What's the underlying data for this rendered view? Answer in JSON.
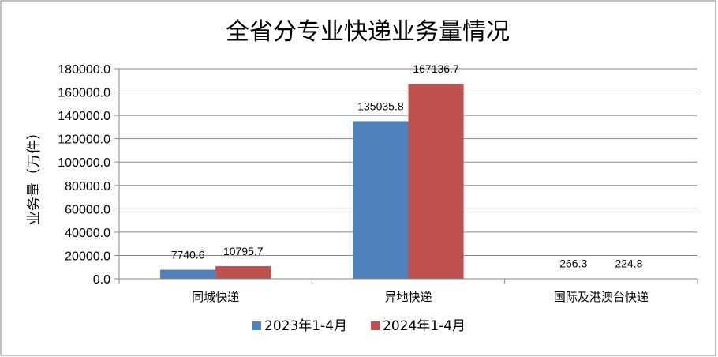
{
  "chart_data": {
    "type": "bar",
    "title": "全省分专业快递业务量情况",
    "xlabel": "",
    "ylabel": "业务量（万件）",
    "categories": [
      "同城快递",
      "异地快递",
      "国际及港澳台快递"
    ],
    "series": [
      {
        "name": "2023年1-4月",
        "values": [
          7740.6,
          135035.8,
          266.3
        ],
        "labels": [
          "7740.6",
          "135035.8",
          "266.3"
        ],
        "color": "#4f81bd"
      },
      {
        "name": "2024年1-4月",
        "values": [
          10795.7,
          167136.7,
          224.8
        ],
        "labels": [
          "10795.7",
          "167136.7",
          "224.8"
        ],
        "color": "#c0504d"
      }
    ],
    "ylim": [
      0,
      180000
    ],
    "ytick_step": 20000,
    "ytick_labels": [
      "0.0",
      "20000.0",
      "40000.0",
      "60000.0",
      "80000.0",
      "100000.0",
      "120000.0",
      "140000.0",
      "160000.0",
      "180000.0"
    ],
    "grid": true,
    "legend_position": "bottom"
  }
}
